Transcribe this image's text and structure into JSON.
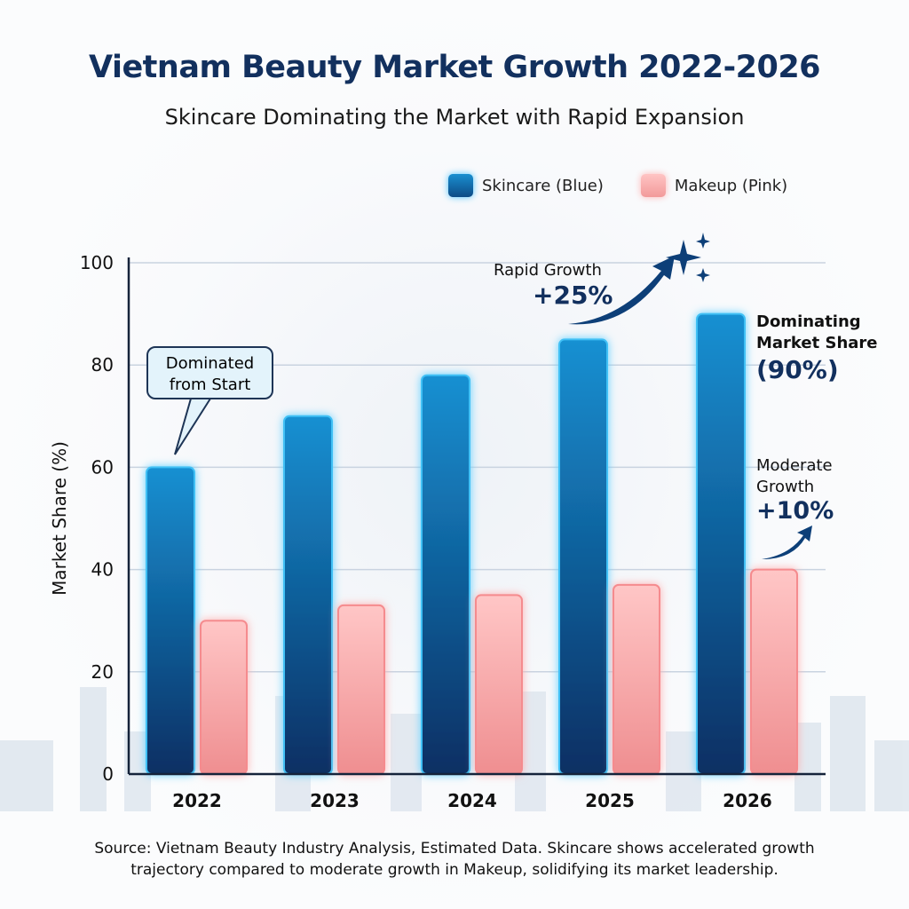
{
  "title": "Vietnam Beauty Market Growth 2022-2026",
  "subtitle": "Skincare Dominating the Market with Rapid Expansion",
  "legend": {
    "skincare": "Skincare (Blue)",
    "makeup": "Makeup (Pink)"
  },
  "annotations": {
    "callout": "Dominated from Start",
    "rapid_label": "Rapid Growth",
    "rapid_value": "+25%",
    "dominating_line1": "Dominating",
    "dominating_line2": "Market Share",
    "dominating_value": "(90%)",
    "moderate_line1": "Moderate",
    "moderate_line2": "Growth",
    "moderate_value": "+10%"
  },
  "source": {
    "line1": "Source: Vietnam Beauty Industry Analysis, Estimated Data. Skincare shows accelerated growth",
    "line2": "trajectory compared to moderate growth in Makeup, solidifying its market leadership."
  },
  "colors": {
    "skincare": "#0d5a9a",
    "skincare_glow": "#4cc4ff",
    "makeup": "#f7a9a9",
    "title": "#12305e"
  },
  "chart_data": {
    "type": "bar",
    "title": "Vietnam Beauty Market Growth 2022-2026",
    "xlabel": "",
    "ylabel": "Market Share (%)",
    "ylim": [
      0,
      100
    ],
    "yticks": [
      0,
      20,
      40,
      60,
      80,
      100
    ],
    "grid": true,
    "legend_position": "top-right",
    "categories": [
      "2022",
      "2023",
      "2024",
      "2025",
      "2026"
    ],
    "series": [
      {
        "name": "Skincare (Blue)",
        "values": [
          60,
          70,
          78,
          85,
          90
        ]
      },
      {
        "name": "Makeup (Pink)",
        "values": [
          30,
          33,
          35,
          37,
          40
        ]
      }
    ]
  }
}
